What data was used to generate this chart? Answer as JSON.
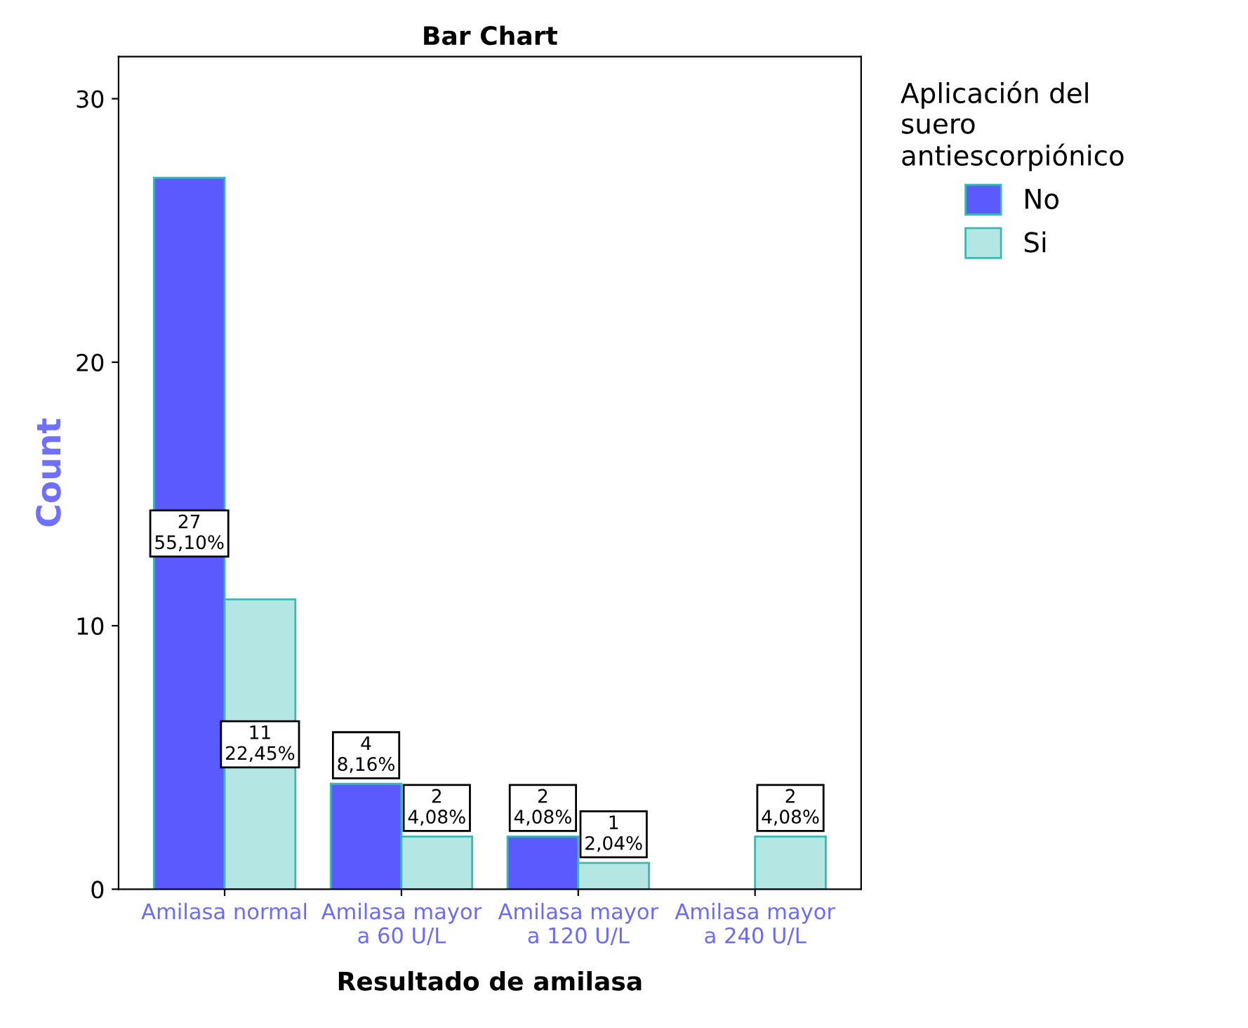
{
  "chart_data": {
    "type": "bar",
    "title": "Bar Chart",
    "xlabel": "Resultado de amilasa",
    "ylabel": "Count",
    "legend_title": "Aplicación del\nsuero\nantiescorpiónico",
    "categories": [
      "Amilasa normal",
      "Amilasa mayor\na 60 U/L",
      "Amilasa mayor\na 120 U/L",
      "Amilasa mayor\na 240 U/L"
    ],
    "series": [
      {
        "name": "No",
        "color": "#5a5aff",
        "values": [
          27,
          4,
          2,
          null
        ],
        "value_labels": [
          "27\n55,10%",
          "4\n8,16%",
          "2\n4,08%",
          null
        ]
      },
      {
        "name": "Si",
        "color": "#b4e6e4",
        "values": [
          11,
          2,
          1,
          2
        ],
        "value_labels": [
          "11\n22,45%",
          "2\n4,08%",
          "1\n2,04%",
          "2\n4,08%"
        ]
      }
    ],
    "ylim": [
      0,
      31.6
    ],
    "yticks": [
      0,
      10,
      20,
      30
    ],
    "grid": false,
    "legend": "top right"
  }
}
